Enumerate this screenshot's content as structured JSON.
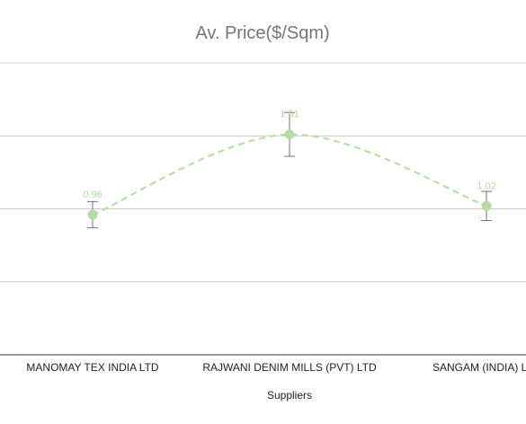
{
  "chart_data": {
    "type": "line",
    "title": "Av. Price($/Sqm)",
    "xlabel": "Suppliers",
    "ylabel": "",
    "categories": [
      "MANOMAY TEX INDIA LTD",
      "RAJWANI DENIM MILLS (PVT) LTD",
      "SANGAM (INDIA) L"
    ],
    "series": [
      {
        "values": [
          0.96,
          1.51,
          1.02
        ],
        "error_low": [
          0.87,
          1.36,
          0.92
        ],
        "error_high": [
          1.05,
          1.66,
          1.12
        ],
        "data_labels": [
          "0.96",
          "1.51",
          "1.02"
        ],
        "color": "#b7d9a8",
        "line_style": "dashed",
        "smooth": true
      }
    ],
    "ylim": [
      0,
      2
    ],
    "y_gridlines": [
      0.5,
      1.0,
      1.5,
      2.0
    ],
    "grid": true,
    "legend": "none",
    "error_bar_color": "#6e7a6b",
    "gridline_color": "#cccccc",
    "axis_color": "#333333"
  }
}
